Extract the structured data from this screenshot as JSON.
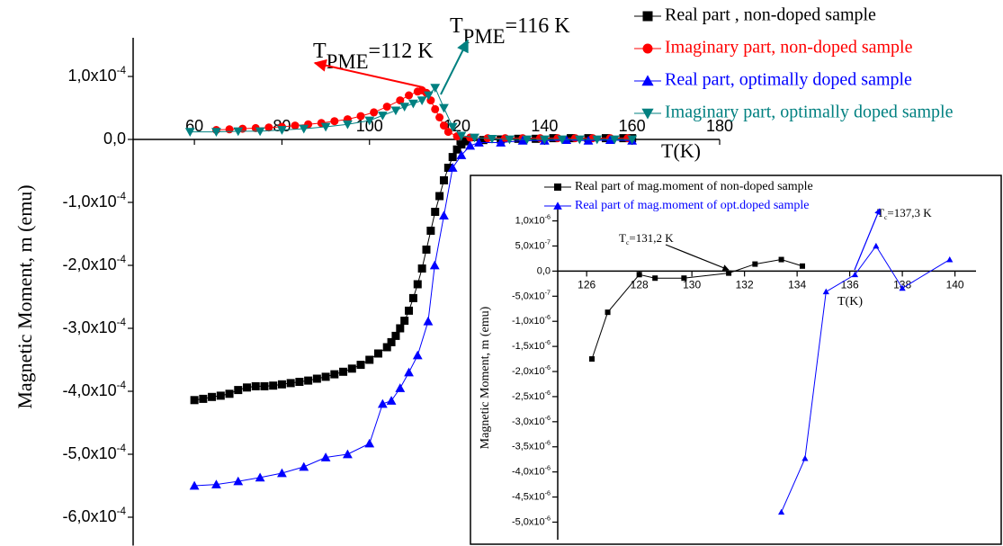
{
  "chart_data": [
    {
      "type": "line",
      "x_label": "T(K)",
      "y_label": "Magnetic Moment, m (emu)",
      "xlim": [
        46,
        180
      ],
      "xticks": [
        60,
        80,
        100,
        120,
        140,
        160,
        180
      ],
      "ylim": [
        -0.000645,
        0.00015
      ],
      "yticks": [
        {
          "value": 0.0001,
          "label": "1,0x10-4"
        },
        {
          "value": 0,
          "label": "0,0"
        },
        {
          "value": -0.0001,
          "label": "-1,0x10-4"
        },
        {
          "value": -0.0002,
          "label": "-2,0x10-4"
        },
        {
          "value": -0.0003,
          "label": "-3,0x10-4"
        },
        {
          "value": -0.0004,
          "label": "-4,0x10-4"
        },
        {
          "value": -0.0005,
          "label": "-5,0x10-4"
        },
        {
          "value": -0.0006,
          "label": "-6,0x10-4"
        }
      ],
      "annotations": [
        {
          "text": "T",
          "subscript": "PME",
          "suffix": "=112 K"
        },
        {
          "text": "T",
          "subscript": "PME",
          "suffix": "=116 K"
        }
      ],
      "series": [
        {
          "name": "Real part , non-doped sample",
          "color": "#000000",
          "marker": "square",
          "x": [
            60,
            62,
            64,
            66,
            68,
            70,
            72,
            74,
            76,
            78,
            80,
            82,
            84,
            86,
            88,
            90,
            92,
            94,
            96,
            98,
            100,
            102,
            104,
            105,
            106,
            107,
            108,
            109,
            110,
            111,
            112,
            113,
            114,
            115,
            116,
            117,
            118,
            119,
            120,
            121,
            122,
            126,
            130,
            134,
            138,
            142,
            146,
            150,
            154,
            158,
            160
          ],
          "values": [
            -0.000414,
            -0.000412,
            -0.000409,
            -0.000407,
            -0.000404,
            -0.000398,
            -0.000394,
            -0.000392,
            -0.000392,
            -0.000391,
            -0.000389,
            -0.000387,
            -0.000385,
            -0.000383,
            -0.00038,
            -0.000377,
            -0.000373,
            -0.000369,
            -0.000364,
            -0.000358,
            -0.00035,
            -0.00034,
            -0.00033,
            -0.000322,
            -0.000312,
            -0.0003,
            -0.000288,
            -0.000272,
            -0.000252,
            -0.00023,
            -0.000205,
            -0.000175,
            -0.000145,
            -0.000115,
            -9e-05,
            -6.5e-05,
            -4.5e-05,
            -2.8e-05,
            -1.6e-05,
            -8e-06,
            -3e-06,
            -1e-06,
            0,
            1e-06,
            1e-06,
            2e-06,
            2e-06,
            2e-06,
            2e-06,
            2e-06,
            2e-06
          ]
        },
        {
          "name": "Imaginary part, non-doped sample",
          "color": "#ff0000",
          "marker": "circle",
          "x": [
            65,
            68,
            71,
            74,
            77,
            80,
            83,
            86,
            89,
            92,
            95,
            98,
            101,
            104,
            107,
            109,
            111,
            112,
            113,
            114,
            115,
            116,
            117,
            118,
            120,
            123,
            127,
            131,
            135,
            139,
            143,
            147,
            151,
            155,
            159
          ],
          "values": [
            1.5e-05,
            1.6e-05,
            1.7e-05,
            1.8e-05,
            1.9e-05,
            2e-05,
            2.2e-05,
            2.4e-05,
            2.6e-05,
            2.9e-05,
            3.2e-05,
            3.7e-05,
            4.3e-05,
            5.2e-05,
            6.2e-05,
            7e-05,
            7.6e-05,
            7.8e-05,
            7.4e-05,
            6.2e-05,
            4.8e-05,
            3.5e-05,
            2.2e-05,
            1.2e-05,
            5e-06,
            3e-06,
            2e-06,
            2e-06,
            2e-06,
            2e-06,
            2e-06,
            2e-06,
            2e-06,
            2e-06,
            2e-06
          ]
        },
        {
          "name": "Real part, optimally doped sample",
          "color": "#0000ff",
          "marker": "triangle-up",
          "x": [
            60,
            65,
            70,
            75,
            80,
            85,
            90,
            95,
            100,
            103,
            105,
            107,
            109,
            111,
            113.4,
            114.9,
            117,
            119,
            121,
            123,
            125,
            130,
            135,
            140,
            145,
            150,
            155,
            160
          ],
          "values": [
            -0.00055,
            -0.000548,
            -0.000543,
            -0.000537,
            -0.00053,
            -0.00052,
            -0.000505,
            -0.0005,
            -0.000483,
            -0.00042,
            -0.000415,
            -0.000395,
            -0.00037,
            -0.000343,
            -0.000289,
            -0.0002,
            -0.000121,
            -4.5e-05,
            -2.5e-05,
            -1e-05,
            -5e-06,
            -5e-06,
            -2e-06,
            -2e-06,
            -1e-06,
            -2e-06,
            -1e-06,
            -2e-06
          ]
        },
        {
          "name": "Imaginary part, optimally doped sample",
          "color": "#008080",
          "marker": "triangle-down",
          "x": [
            59,
            65,
            70,
            75,
            80,
            85,
            90,
            95,
            100,
            103,
            106,
            108,
            110,
            112,
            113.5,
            115,
            117,
            119,
            121,
            124,
            128,
            132,
            136,
            140,
            144,
            148,
            152,
            156,
            160
          ],
          "values": [
            1.2e-05,
            1.2e-05,
            1.3e-05,
            1.3e-05,
            1.5e-05,
            1.7e-05,
            2e-05,
            2.4e-05,
            3e-05,
            3.8e-05,
            4.6e-05,
            5.2e-05,
            5.7e-05,
            6.2e-05,
            7e-05,
            8.2e-05,
            5e-05,
            2e-05,
            6e-06,
            3e-06,
            1e-06,
            0,
            0,
            0,
            0,
            0,
            0,
            0,
            0
          ]
        }
      ]
    },
    {
      "type": "line",
      "x_label": "T(K)",
      "y_label": "Magnetic Moment, m (emu)",
      "xlim": [
        124.9,
        140.8
      ],
      "xticks": [
        126,
        128,
        130,
        132,
        134,
        136,
        138,
        140
      ],
      "ylim": [
        -5.35e-06,
        1.1e-06
      ],
      "yticks": [
        {
          "value": 1e-06,
          "label": "1,0x10-6"
        },
        {
          "value": 5e-07,
          "label": "5,0x10-7"
        },
        {
          "value": 0,
          "label": "0,0"
        },
        {
          "value": -5e-07,
          "label": "-5,0x10-7"
        },
        {
          "value": -1e-06,
          "label": "-1,0x10-6"
        },
        {
          "value": -1.5e-06,
          "label": "-1,5x10-6"
        },
        {
          "value": -2e-06,
          "label": "-2,0x10-6"
        },
        {
          "value": -2.5e-06,
          "label": "-2,5x10-6"
        },
        {
          "value": -3e-06,
          "label": "-3,0x10-6"
        },
        {
          "value": -3.5e-06,
          "label": "-3,5x10-6"
        },
        {
          "value": -4e-06,
          "label": "-4,0x10-6"
        },
        {
          "value": -4.5e-06,
          "label": "-4,5x10-6"
        },
        {
          "value": -5e-06,
          "label": "-5,0x10-6"
        }
      ],
      "annotations": [
        {
          "text": "T",
          "subscript": "c",
          "suffix": "=131,2 K"
        },
        {
          "text": "T",
          "subscript": "c",
          "suffix": "=137,3 K"
        }
      ],
      "series": [
        {
          "name": "Real part of mag.moment of non-doped sample",
          "color": "#000000",
          "marker": "square",
          "x": [
            126.2,
            126.8,
            128.0,
            128.6,
            129.7,
            131.4,
            132.4,
            133.4,
            134.2
          ],
          "values": [
            -1.75e-06,
            -8.2e-07,
            -7e-08,
            -1.4e-07,
            -1.4e-07,
            -4e-08,
            1.4e-07,
            2.3e-07,
            1e-07
          ]
        },
        {
          "name": "Real part of mag.moment of opt.doped sample",
          "color": "#0000ff",
          "marker": "triangle-up",
          "x": [
            133.4,
            134.3,
            135.1,
            136.2,
            137.0,
            138.0,
            139.8
          ],
          "values": [
            -4.8e-06,
            -3.73e-06,
            -4.1e-07,
            -7e-08,
            5e-07,
            -3.4e-07,
            2.3e-07
          ]
        }
      ]
    }
  ]
}
